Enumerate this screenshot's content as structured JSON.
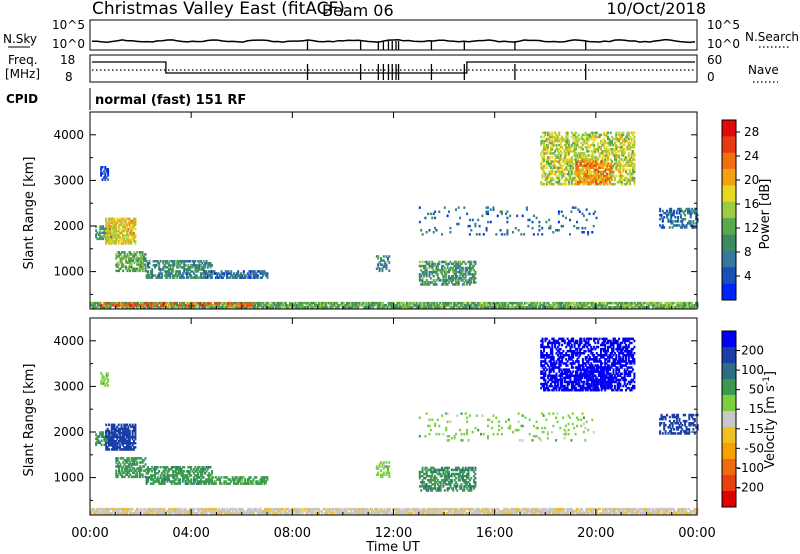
{
  "header": {
    "title": "Christmas Valley East (fitACF)",
    "beam": "Beam 06",
    "date": "10/Oct/2018"
  },
  "panels": {
    "nsky": {
      "left_label": "N.Sky",
      "right_label": "N.Search",
      "left_ticks": [
        "10^5",
        "10^0"
      ],
      "right_ticks": [
        "10^5",
        "10^0"
      ]
    },
    "freq": {
      "left_label_1": "Freq.",
      "left_label_2": "[MHz]",
      "right_label": "Nave",
      "left_ticks": [
        "18",
        "8"
      ],
      "right_ticks": [
        "60",
        "0"
      ]
    },
    "cpid": {
      "label": "CPID",
      "mode_text": "normal (fast) 151 RF"
    }
  },
  "chart_data": [
    {
      "type": "heatmap",
      "name": "power-panel",
      "xlabel": "Time UT",
      "ylabel": "Slant Range [km]",
      "x_ticks": [
        "00:00",
        "04:00",
        "08:00",
        "12:00",
        "16:00",
        "20:00",
        "00:00"
      ],
      "x_tick_hours": [
        0,
        4,
        8,
        12,
        16,
        20,
        24
      ],
      "xlim_hours": [
        0,
        24
      ],
      "ylim": [
        180,
        4500
      ],
      "y_ticks": [
        1000,
        2000,
        3000,
        4000
      ],
      "colorbar": {
        "label": "Power [dB]",
        "ticks": [
          4,
          8,
          12,
          16,
          20,
          24,
          28
        ],
        "range": [
          0,
          30
        ],
        "colors": [
          "#0022ff",
          "#1a4fb4",
          "#3478a0",
          "#3c8a60",
          "#58a850",
          "#9ccc40",
          "#e8d820",
          "#f4a010",
          "#f07010",
          "#e83a12",
          "#e00a0a"
        ]
      },
      "features": [
        {
          "t0": 0.0,
          "t1": 24.0,
          "r0": 200,
          "r1": 330,
          "value": 12,
          "density": 0.85
        },
        {
          "t0": 0.3,
          "t1": 6.5,
          "r0": 240,
          "r1": 320,
          "value": 24,
          "density": 0.45
        },
        {
          "t0": 0.2,
          "t1": 1.0,
          "r0": 1700,
          "r1": 2000,
          "value": 10,
          "density": 0.6
        },
        {
          "t0": 0.6,
          "t1": 1.8,
          "r0": 1600,
          "r1": 2150,
          "value": 18,
          "density": 0.7
        },
        {
          "t0": 1.0,
          "t1": 2.2,
          "r0": 1000,
          "r1": 1450,
          "value": 12,
          "density": 0.6
        },
        {
          "t0": 2.2,
          "t1": 4.8,
          "r0": 850,
          "r1": 1250,
          "value": 9,
          "density": 0.6
        },
        {
          "t0": 4.5,
          "t1": 7.0,
          "r0": 850,
          "r1": 1000,
          "value": 6,
          "density": 0.6
        },
        {
          "t0": 11.3,
          "t1": 11.8,
          "r0": 1000,
          "r1": 1350,
          "value": 8,
          "density": 0.4
        },
        {
          "t0": 13.0,
          "t1": 15.2,
          "r0": 700,
          "r1": 1200,
          "value": 10,
          "density": 0.55
        },
        {
          "t0": 17.8,
          "t1": 21.5,
          "r0": 2900,
          "r1": 4050,
          "value": 16,
          "density": 0.55
        },
        {
          "t0": 19.2,
          "t1": 20.6,
          "r0": 2900,
          "r1": 3400,
          "value": 22,
          "density": 0.55
        },
        {
          "t0": 22.5,
          "t1": 24.0,
          "r0": 1950,
          "r1": 2400,
          "value": 6,
          "density": 0.45
        },
        {
          "t0": 0.4,
          "t1": 0.7,
          "r0": 3000,
          "r1": 3300,
          "value": 4,
          "density": 0.6
        },
        {
          "t0": 13.0,
          "t1": 20.0,
          "r0": 1800,
          "r1": 2400,
          "value": 6,
          "density": 0.08
        }
      ]
    },
    {
      "type": "heatmap",
      "name": "velocity-panel",
      "xlabel": "Time UT",
      "ylabel": "Slant Range [km]",
      "x_ticks": [
        "00:00",
        "04:00",
        "08:00",
        "12:00",
        "16:00",
        "20:00",
        "00:00"
      ],
      "x_tick_hours": [
        0,
        4,
        8,
        12,
        16,
        20,
        24
      ],
      "xlim_hours": [
        0,
        24
      ],
      "ylim": [
        180,
        4500
      ],
      "y_ticks": [
        1000,
        2000,
        3000,
        4000
      ],
      "colorbar": {
        "label": "Velocity [m s^-1]",
        "ticks": [
          200,
          100,
          50,
          15,
          -15,
          -50,
          -100,
          -200
        ],
        "colors": [
          "#0000f0",
          "#1a3ea8",
          "#2e6e80",
          "#3c9a50",
          "#7cd040",
          "#c8c8c8",
          "#f0c020",
          "#f8a000",
          "#f06a10",
          "#e84010",
          "#e00000"
        ]
      },
      "features": [
        {
          "t0": 0.0,
          "t1": 24.0,
          "r0": 200,
          "r1": 330,
          "value": -40,
          "density": 0.85
        },
        {
          "t0": 0.2,
          "t1": 1.0,
          "r0": 1700,
          "r1": 2000,
          "value": 40,
          "density": 0.6
        },
        {
          "t0": 0.6,
          "t1": 1.8,
          "r0": 1600,
          "r1": 2150,
          "value": 140,
          "density": 0.7
        },
        {
          "t0": 1.0,
          "t1": 2.2,
          "r0": 1000,
          "r1": 1450,
          "value": 35,
          "density": 0.6
        },
        {
          "t0": 2.2,
          "t1": 4.8,
          "r0": 850,
          "r1": 1250,
          "value": 35,
          "density": 0.6
        },
        {
          "t0": 4.5,
          "t1": 7.0,
          "r0": 850,
          "r1": 1000,
          "value": 30,
          "density": 0.6
        },
        {
          "t0": 11.3,
          "t1": 11.8,
          "r0": 1000,
          "r1": 1350,
          "value": 0,
          "density": 0.4
        },
        {
          "t0": 13.0,
          "t1": 15.2,
          "r0": 700,
          "r1": 1200,
          "value": 40,
          "density": 0.55
        },
        {
          "t0": 17.8,
          "t1": 21.5,
          "r0": 2900,
          "r1": 4050,
          "value": 230,
          "density": 0.55
        },
        {
          "t0": 19.2,
          "t1": 20.6,
          "r0": 2900,
          "r1": 3400,
          "value": 250,
          "density": 0.55
        },
        {
          "t0": 22.5,
          "t1": 24.0,
          "r0": 1950,
          "r1": 2400,
          "value": 120,
          "density": 0.45
        },
        {
          "t0": 0.4,
          "t1": 0.7,
          "r0": 3000,
          "r1": 3300,
          "value": 0,
          "density": 0.6
        },
        {
          "t0": 13.0,
          "t1": 20.0,
          "r0": 1800,
          "r1": 2400,
          "value": 0,
          "density": 0.08
        }
      ]
    }
  ]
}
